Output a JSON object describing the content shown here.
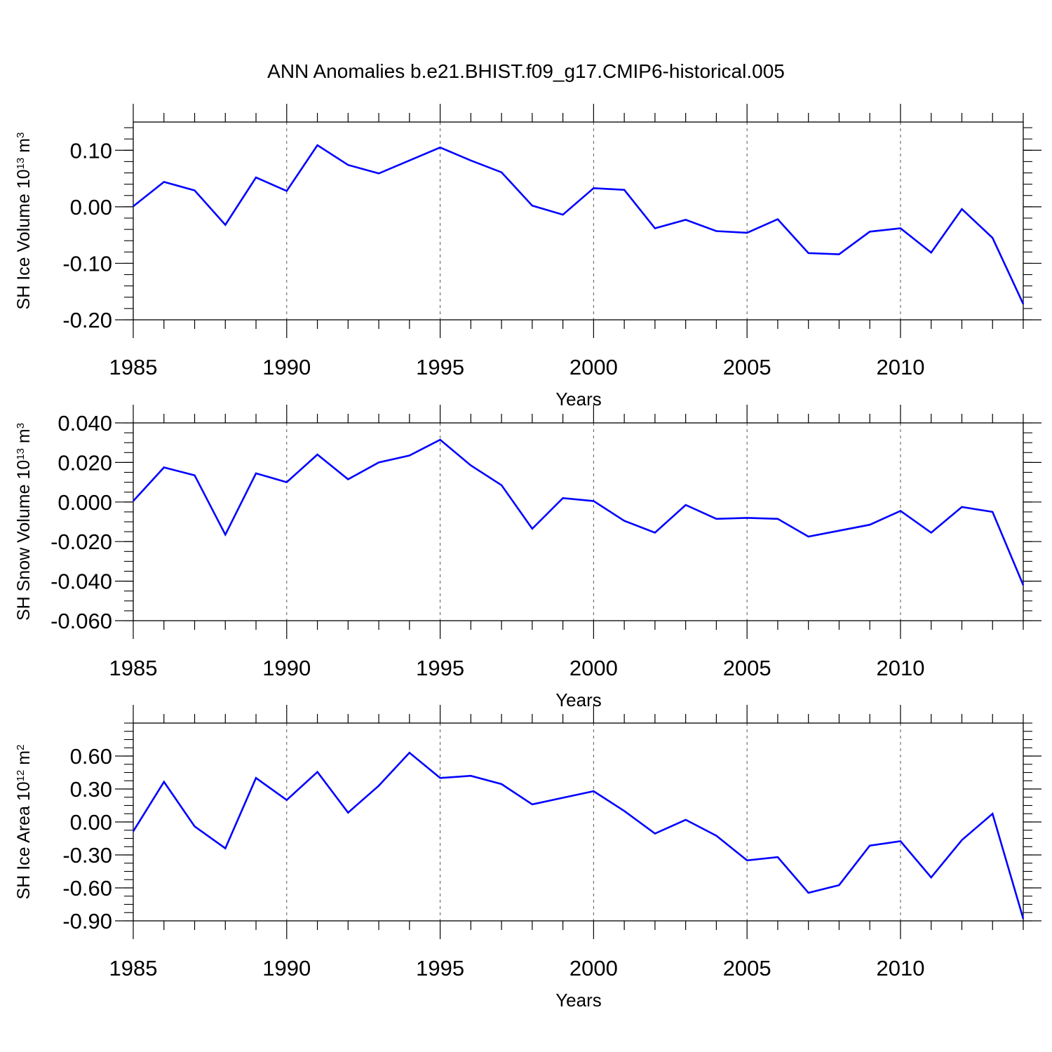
{
  "title": "ANN Anomalies b.e21.BHIST.f09_g17.CMIP6-historical.005",
  "colors": {
    "series": "#0000ff",
    "axis": "#000000",
    "grid": "#555555"
  },
  "chart_data": [
    {
      "type": "line",
      "title": "ANN Anomalies b.e21.BHIST.f09_g17.CMIP6-historical.005",
      "ylabel": {
        "main": "SH Ice Volume 10",
        "exp": "13",
        "unit": " m",
        "unit_exp": "3"
      },
      "xlabel": "Years",
      "xlim": [
        1985,
        2014
      ],
      "ylim": [
        -0.2,
        0.15
      ],
      "xticks": [
        1985,
        1990,
        1995,
        2000,
        2005,
        2010
      ],
      "xtick_labels": [
        "1985",
        "1990",
        "1995",
        "2000",
        "2005",
        "2010"
      ],
      "yticks": [
        0.1,
        0.0,
        -0.1,
        -0.2
      ],
      "ytick_labels": [
        "0.10",
        "0.00",
        "-0.10",
        "-0.20"
      ],
      "yminor_step": 0.02,
      "grid": "vertical dashed at major x ticks",
      "series": [
        {
          "name": "SH Ice Volume",
          "x": [
            1985,
            1986,
            1987,
            1988,
            1989,
            1990,
            1991,
            1992,
            1993,
            1994,
            1995,
            1996,
            1997,
            1998,
            1999,
            2000,
            2001,
            2002,
            2003,
            2004,
            2005,
            2006,
            2007,
            2008,
            2009,
            2010,
            2011,
            2012,
            2013,
            2014
          ],
          "values": [
            0.001,
            0.044,
            0.029,
            -0.032,
            0.052,
            0.028,
            0.109,
            0.074,
            0.059,
            0.082,
            0.105,
            0.082,
            0.061,
            0.002,
            -0.014,
            0.033,
            0.03,
            -0.038,
            -0.023,
            -0.043,
            -0.046,
            -0.022,
            -0.082,
            -0.084,
            -0.044,
            -0.038,
            -0.081,
            -0.004,
            -0.055,
            -0.172
          ]
        }
      ]
    },
    {
      "type": "line",
      "ylabel": {
        "main": "SH Snow Volume 10",
        "exp": "13",
        "unit": " m",
        "unit_exp": "3"
      },
      "xlabel": "Years",
      "xlim": [
        1985,
        2014
      ],
      "ylim": [
        -0.06,
        0.04
      ],
      "xticks": [
        1985,
        1990,
        1995,
        2000,
        2005,
        2010
      ],
      "xtick_labels": [
        "1985",
        "1990",
        "1995",
        "2000",
        "2005",
        "2010"
      ],
      "yticks": [
        0.04,
        0.02,
        0.0,
        -0.02,
        -0.04,
        -0.06
      ],
      "ytick_labels": [
        "0.040",
        "0.020",
        "0.000",
        "-0.020",
        "-0.040",
        "-0.060"
      ],
      "yminor_step": 0.005,
      "grid": "vertical dashed at major x ticks",
      "series": [
        {
          "name": "SH Snow Volume",
          "x": [
            1985,
            1986,
            1987,
            1988,
            1989,
            1990,
            1991,
            1992,
            1993,
            1994,
            1995,
            1996,
            1997,
            1998,
            1999,
            2000,
            2001,
            2002,
            2003,
            2004,
            2005,
            2006,
            2007,
            2008,
            2009,
            2010,
            2011,
            2012,
            2013,
            2014
          ],
          "values": [
            0.0005,
            0.0175,
            0.0135,
            -0.0165,
            0.0145,
            0.01,
            0.024,
            0.0115,
            0.02,
            0.0235,
            0.0315,
            0.0185,
            0.0085,
            -0.0135,
            0.002,
            0.0005,
            -0.0095,
            -0.0155,
            -0.0015,
            -0.0085,
            -0.008,
            -0.0085,
            -0.0175,
            -0.0145,
            -0.0115,
            -0.0045,
            -0.0155,
            -0.0025,
            -0.005,
            -0.042
          ]
        }
      ]
    },
    {
      "type": "line",
      "ylabel": {
        "main": "SH Ice Area 10",
        "exp": "12",
        "unit": " m",
        "unit_exp": "2"
      },
      "xlabel": "Years",
      "xlim": [
        1985,
        2014
      ],
      "ylim": [
        -0.9,
        0.9
      ],
      "xticks": [
        1985,
        1990,
        1995,
        2000,
        2005,
        2010
      ],
      "xtick_labels": [
        "1985",
        "1990",
        "1995",
        "2000",
        "2005",
        "2010"
      ],
      "yticks": [
        0.6,
        0.3,
        0.0,
        -0.3,
        -0.6,
        -0.9
      ],
      "ytick_labels": [
        "0.60",
        "0.30",
        "0.00",
        "-0.30",
        "-0.60",
        "-0.90"
      ],
      "yminor_step": 0.075,
      "grid": "vertical dashed at major x ticks",
      "series": [
        {
          "name": "SH Ice Area",
          "x": [
            1985,
            1986,
            1987,
            1988,
            1989,
            1990,
            1991,
            1992,
            1993,
            1994,
            1995,
            1996,
            1997,
            1998,
            1999,
            2000,
            2001,
            2002,
            2003,
            2004,
            2005,
            2006,
            2007,
            2008,
            2009,
            2010,
            2011,
            2012,
            2013,
            2014
          ],
          "values": [
            -0.085,
            0.365,
            -0.04,
            -0.24,
            0.4,
            0.2,
            0.455,
            0.085,
            0.33,
            0.63,
            0.4,
            0.42,
            0.345,
            0.16,
            0.22,
            0.28,
            0.1,
            -0.105,
            0.02,
            -0.125,
            -0.35,
            -0.32,
            -0.645,
            -0.575,
            -0.215,
            -0.175,
            -0.505,
            -0.165,
            0.075,
            -0.88
          ]
        }
      ]
    }
  ]
}
